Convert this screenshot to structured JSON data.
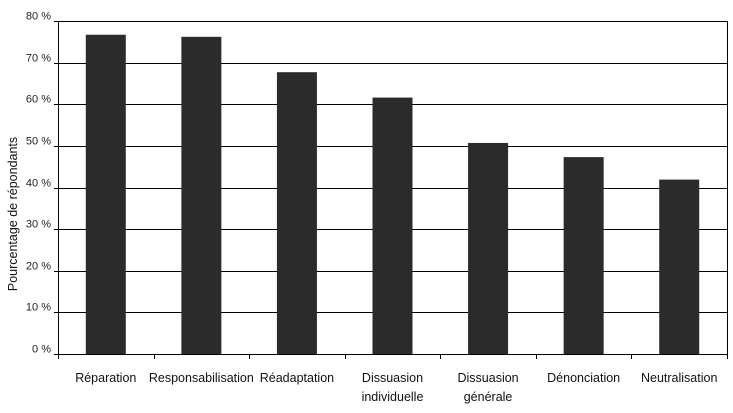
{
  "chart_data": {
    "type": "bar",
    "title": "",
    "xlabel": "",
    "ylabel": "Pourcentage de répondants",
    "ylim": [
      0,
      80
    ],
    "yticks": [
      "0 %",
      "10 %",
      "20 %",
      "30 %",
      "40 %",
      "50 %",
      "60 %",
      "70 %",
      "80 %"
    ],
    "grid": true,
    "legend": "none",
    "colors": {
      "bar": "#2b2b2b",
      "grid": "#000000"
    },
    "categories": [
      [
        "Réparation"
      ],
      [
        "Responsabilisation"
      ],
      [
        "Réadaptation"
      ],
      [
        "Dissuasion",
        "individuelle"
      ],
      [
        "Dissuasion",
        "générale"
      ],
      [
        "Dénonciation"
      ],
      [
        "Neutralisation"
      ]
    ],
    "values": [
      76.7,
      76.2,
      67.7,
      61.6,
      50.7,
      47.3,
      41.9
    ]
  }
}
